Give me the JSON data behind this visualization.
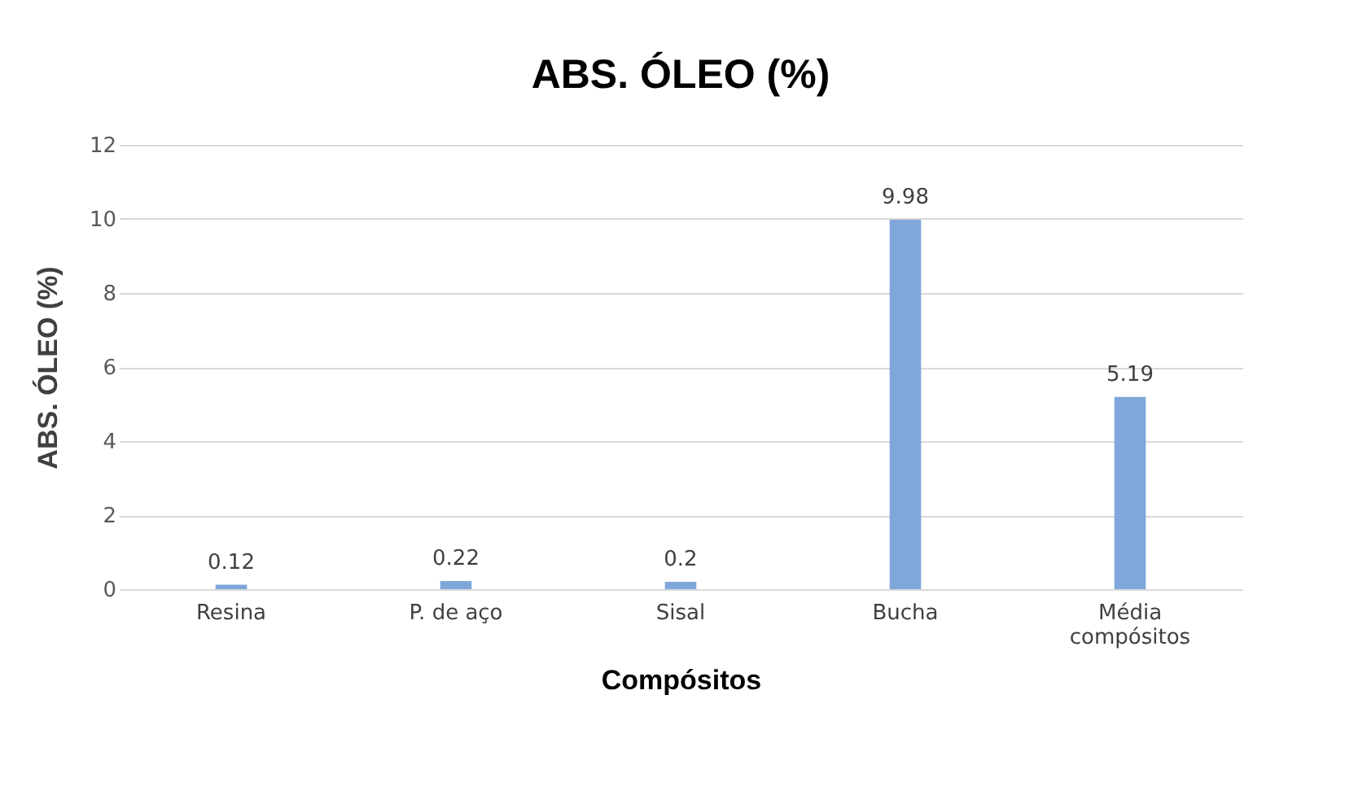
{
  "chart_data": {
    "type": "bar",
    "title": "ABS. ÓLEO (%)",
    "xlabel": "Compósitos",
    "ylabel": "ABS. ÓLEO (%)",
    "categories": [
      "Resina",
      "P. de aço",
      "Sisal",
      "Bucha",
      "Média compósitos"
    ],
    "values": [
      0.12,
      0.22,
      0.2,
      9.98,
      5.19
    ],
    "color": "#7fa7d9",
    "ylim": [
      0,
      12
    ],
    "yticks": [
      0,
      2,
      4,
      6,
      8,
      10,
      12
    ],
    "grid": "y",
    "data_labels": true
  }
}
